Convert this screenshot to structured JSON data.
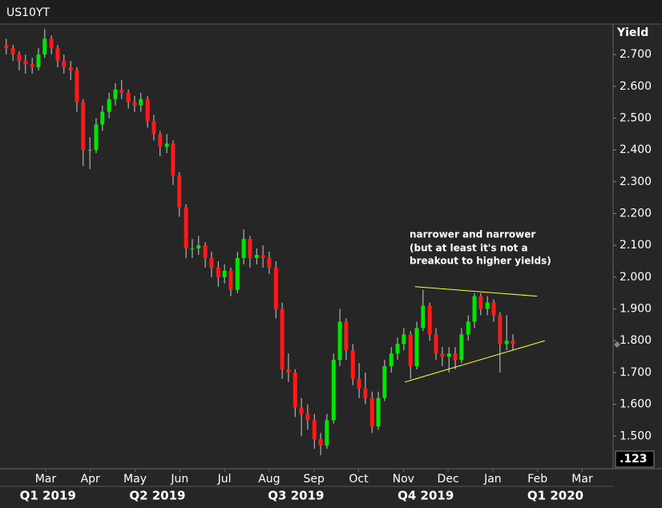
{
  "chart_data": {
    "type": "candlestick",
    "title": "US10YT",
    "y_axis_label": "Yield",
    "corner_tag": ".123",
    "annotation": [
      "narrower and narrower",
      "(but at least it's not a",
      "breakout to higher yields)"
    ],
    "up_color": "#00e600",
    "down_color": "#ff1a1a",
    "trendline_color": "#ffff33",
    "xlim": [
      0.98,
      14.69
    ],
    "ylim": [
      1.41,
      2.796
    ],
    "xticks": [
      {
        "value": 2,
        "label": "Mar"
      },
      {
        "value": 3,
        "label": "Apr"
      },
      {
        "value": 4,
        "label": "May"
      },
      {
        "value": 5,
        "label": "Jun"
      },
      {
        "value": 6,
        "label": "Jul"
      },
      {
        "value": 7,
        "label": "Aug"
      },
      {
        "value": 8,
        "label": "Sep"
      },
      {
        "value": 9,
        "label": "Oct"
      },
      {
        "value": 10,
        "label": "Nov"
      },
      {
        "value": 11,
        "label": "Dec"
      },
      {
        "value": 12,
        "label": "Jan"
      },
      {
        "value": 13,
        "label": "Feb"
      },
      {
        "value": 14,
        "label": "Mar"
      }
    ],
    "quarters": [
      {
        "value": 2.05,
        "label": "Q1 2019"
      },
      {
        "value": 4.5,
        "label": "Q2 2019"
      },
      {
        "value": 7.6,
        "label": "Q3 2019"
      },
      {
        "value": 10.5,
        "label": "Q4 2019"
      },
      {
        "value": 13.4,
        "label": "Q1 2020"
      }
    ],
    "yticks": [
      {
        "value": 1.5,
        "label": "1.500"
      },
      {
        "value": 1.6,
        "label": "1.600"
      },
      {
        "value": 1.7,
        "label": "1.700"
      },
      {
        "value": 1.8,
        "label": "1.800"
      },
      {
        "value": 1.9,
        "label": "1.900"
      },
      {
        "value": 2.0,
        "label": "2.000"
      },
      {
        "value": 2.1,
        "label": "2.100"
      },
      {
        "value": 2.2,
        "label": "2.200"
      },
      {
        "value": 2.3,
        "label": "2.300"
      },
      {
        "value": 2.4,
        "label": "2.400"
      },
      {
        "value": 2.5,
        "label": "2.500"
      },
      {
        "value": 2.6,
        "label": "2.600"
      },
      {
        "value": 2.7,
        "label": "2.700"
      }
    ],
    "x": [
      1.12,
      1.27,
      1.41,
      1.55,
      1.7,
      1.84,
      1.98,
      2.13,
      2.27,
      2.41,
      2.56,
      2.7,
      2.84,
      2.99,
      3.13,
      3.27,
      3.42,
      3.56,
      3.7,
      3.85,
      3.99,
      4.13,
      4.28,
      4.42,
      4.56,
      4.71,
      4.85,
      4.99,
      5.14,
      5.28,
      5.42,
      5.57,
      5.71,
      5.86,
      6.0,
      6.14,
      6.29,
      6.43,
      6.57,
      6.72,
      6.86,
      7.0,
      7.15,
      7.29,
      7.43,
      7.58,
      7.72,
      7.86,
      8.01,
      8.15,
      8.29,
      8.44,
      8.58,
      8.72,
      8.87,
      9.01,
      9.15,
      9.3,
      9.44,
      9.58,
      9.73,
      9.87,
      10.01,
      10.16,
      10.3,
      10.44,
      10.59,
      10.73,
      10.87,
      11.02,
      11.16,
      11.3,
      11.45,
      11.59,
      11.73,
      11.88,
      12.02,
      12.16,
      12.31,
      12.45
    ],
    "candles": [
      [
        2.73,
        2.75,
        2.7,
        2.72
      ],
      [
        2.72,
        2.73,
        2.68,
        2.7
      ],
      [
        2.7,
        2.71,
        2.65,
        2.68
      ],
      [
        2.68,
        2.7,
        2.64,
        2.67
      ],
      [
        2.67,
        2.69,
        2.64,
        2.66
      ],
      [
        2.66,
        2.72,
        2.65,
        2.7
      ],
      [
        2.7,
        2.78,
        2.69,
        2.75
      ],
      [
        2.75,
        2.76,
        2.7,
        2.72
      ],
      [
        2.72,
        2.73,
        2.66,
        2.68
      ],
      [
        2.68,
        2.7,
        2.64,
        2.66
      ],
      [
        2.66,
        2.68,
        2.62,
        2.65
      ],
      [
        2.65,
        2.66,
        2.52,
        2.55
      ],
      [
        2.55,
        2.56,
        2.35,
        2.4
      ],
      [
        2.4,
        2.44,
        2.34,
        2.4
      ],
      [
        2.4,
        2.5,
        2.39,
        2.48
      ],
      [
        2.48,
        2.54,
        2.46,
        2.52
      ],
      [
        2.52,
        2.58,
        2.5,
        2.56
      ],
      [
        2.56,
        2.61,
        2.54,
        2.59
      ],
      [
        2.59,
        2.62,
        2.56,
        2.58
      ],
      [
        2.58,
        2.59,
        2.53,
        2.55
      ],
      [
        2.55,
        2.57,
        2.52,
        2.54
      ],
      [
        2.54,
        2.58,
        2.52,
        2.56
      ],
      [
        2.56,
        2.57,
        2.47,
        2.49
      ],
      [
        2.49,
        2.51,
        2.43,
        2.45
      ],
      [
        2.45,
        2.46,
        2.38,
        2.41
      ],
      [
        2.41,
        2.45,
        2.39,
        2.42
      ],
      [
        2.42,
        2.43,
        2.29,
        2.32
      ],
      [
        2.32,
        2.33,
        2.19,
        2.22
      ],
      [
        2.22,
        2.23,
        2.06,
        2.09
      ],
      [
        2.09,
        2.12,
        2.06,
        2.09
      ],
      [
        2.09,
        2.13,
        2.07,
        2.1
      ],
      [
        2.1,
        2.11,
        2.03,
        2.06
      ],
      [
        2.06,
        2.08,
        2.0,
        2.03
      ],
      [
        2.03,
        2.05,
        1.97,
        2.0
      ],
      [
        2.0,
        2.04,
        1.98,
        2.02
      ],
      [
        2.02,
        2.03,
        1.94,
        1.96
      ],
      [
        1.96,
        2.08,
        1.95,
        2.06
      ],
      [
        2.06,
        2.15,
        2.04,
        2.12
      ],
      [
        2.12,
        2.13,
        2.03,
        2.06
      ],
      [
        2.06,
        2.09,
        2.04,
        2.07
      ],
      [
        2.07,
        2.1,
        2.03,
        2.06
      ],
      [
        2.06,
        2.08,
        2.01,
        2.03
      ],
      [
        2.03,
        2.05,
        1.87,
        1.9
      ],
      [
        1.9,
        1.92,
        1.68,
        1.71
      ],
      [
        1.71,
        1.76,
        1.67,
        1.7
      ],
      [
        1.7,
        1.71,
        1.56,
        1.59
      ],
      [
        1.59,
        1.62,
        1.5,
        1.57
      ],
      [
        1.57,
        1.6,
        1.52,
        1.55
      ],
      [
        1.55,
        1.57,
        1.46,
        1.49
      ],
      [
        1.49,
        1.51,
        1.44,
        1.47
      ],
      [
        1.47,
        1.57,
        1.46,
        1.55
      ],
      [
        1.55,
        1.76,
        1.54,
        1.74
      ],
      [
        1.74,
        1.9,
        1.72,
        1.86
      ],
      [
        1.86,
        1.87,
        1.74,
        1.77
      ],
      [
        1.77,
        1.79,
        1.66,
        1.68
      ],
      [
        1.68,
        1.73,
        1.62,
        1.65
      ],
      [
        1.65,
        1.7,
        1.6,
        1.62
      ],
      [
        1.62,
        1.64,
        1.51,
        1.53
      ],
      [
        1.53,
        1.64,
        1.52,
        1.62
      ],
      [
        1.62,
        1.74,
        1.61,
        1.72
      ],
      [
        1.72,
        1.78,
        1.7,
        1.76
      ],
      [
        1.76,
        1.81,
        1.74,
        1.79
      ],
      [
        1.79,
        1.84,
        1.77,
        1.82
      ],
      [
        1.82,
        1.83,
        1.68,
        1.72
      ],
      [
        1.72,
        1.86,
        1.71,
        1.84
      ],
      [
        1.84,
        1.96,
        1.83,
        1.91
      ],
      [
        1.91,
        1.92,
        1.8,
        1.82
      ],
      [
        1.82,
        1.84,
        1.74,
        1.76
      ],
      [
        1.76,
        1.78,
        1.72,
        1.75
      ],
      [
        1.75,
        1.78,
        1.7,
        1.76
      ],
      [
        1.76,
        1.78,
        1.71,
        1.74
      ],
      [
        1.74,
        1.84,
        1.73,
        1.82
      ],
      [
        1.82,
        1.88,
        1.8,
        1.86
      ],
      [
        1.86,
        1.95,
        1.84,
        1.94
      ],
      [
        1.94,
        1.95,
        1.88,
        1.9
      ],
      [
        1.9,
        1.94,
        1.88,
        1.92
      ],
      [
        1.92,
        1.93,
        1.86,
        1.88
      ],
      [
        1.88,
        1.89,
        1.7,
        1.79
      ],
      [
        1.79,
        1.88,
        1.77,
        1.8
      ],
      [
        1.8,
        1.82,
        1.77,
        1.79
      ]
    ],
    "trendlines": [
      {
        "x": [
          10.26,
          12.99
        ],
        "y": [
          1.97,
          1.94
        ]
      },
      {
        "x": [
          10.03,
          13.16
        ],
        "y": [
          1.67,
          1.8
        ]
      }
    ]
  }
}
